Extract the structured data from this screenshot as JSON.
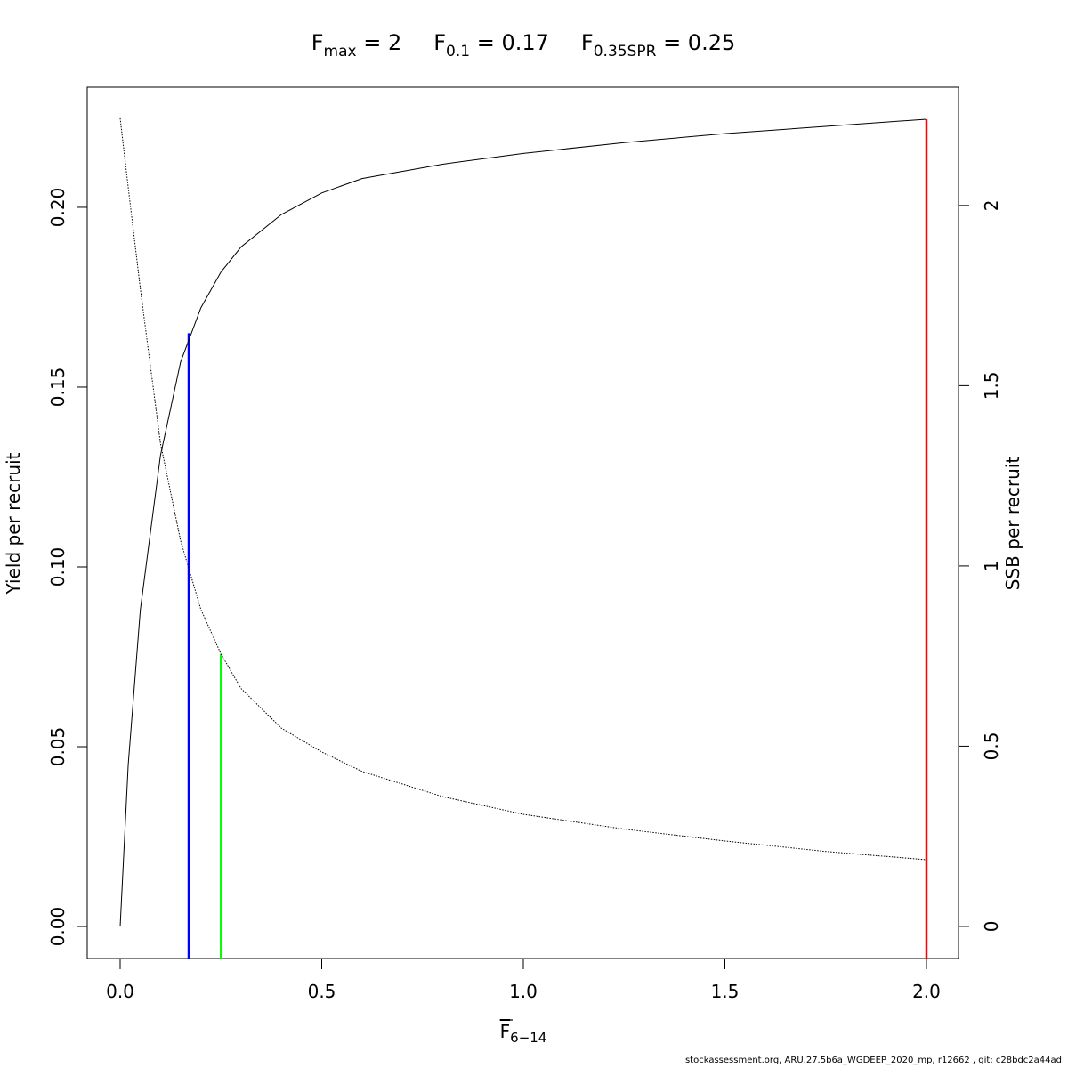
{
  "chart_data": {
    "type": "line",
    "title_parts": [
      {
        "base": "F",
        "sub": "max",
        "text": " = 2"
      },
      {
        "base": "F",
        "sub": "0.1",
        "text": " = 0.17"
      },
      {
        "base": "F",
        "sub": "0.35SPR",
        "text": " = 0.25"
      }
    ],
    "xlabel": {
      "base": "F",
      "sub": "6−14"
    },
    "ylabel": "Yield per recruit",
    "y2label": "SSB per recruit",
    "footer": "stockassessment.org, ARU.27.5b6a_WGDEEP_2020_mp, r12662 , git: c28bdc2a44ad",
    "x": [
      0,
      0.02,
      0.05,
      0.1,
      0.15,
      0.2,
      0.25,
      0.3,
      0.4,
      0.5,
      0.6,
      0.8,
      1.0,
      1.25,
      1.5,
      1.75,
      2.0
    ],
    "series": [
      {
        "name": "Yield per recruit",
        "color": "#000000",
        "linestyle": "solid",
        "axis": "y",
        "values": [
          0,
          0.045,
          0.088,
          0.131,
          0.157,
          0.172,
          0.182,
          0.189,
          0.198,
          0.204,
          0.208,
          0.212,
          0.215,
          0.218,
          0.2205,
          0.2225,
          0.2245
        ]
      },
      {
        "name": "SSB per recruit",
        "color": "#000000",
        "linestyle": "dotted",
        "axis": "y2",
        "values": [
          2.242,
          2.05,
          1.77,
          1.34,
          1.07,
          0.88,
          0.756,
          0.66,
          0.55,
          0.484,
          0.43,
          0.36,
          0.311,
          0.27,
          0.237,
          0.208,
          0.185
        ]
      }
    ],
    "ref_lines": [
      {
        "x": 0.17,
        "top": 0.165,
        "axis": "y",
        "color": "#0000ff"
      },
      {
        "x": 0.25,
        "top": 0.756,
        "axis": "y2",
        "color": "#00ff00"
      },
      {
        "x": 2.0,
        "top": 0.2245,
        "axis": "y",
        "color": "#ff0000"
      }
    ],
    "xlim": [
      -0.0817,
      2.0795
    ],
    "xticks": [
      {
        "value": 0,
        "label": "0.0"
      },
      0.5,
      {
        "value": 1,
        "label": "1.0"
      },
      1.5,
      {
        "value": 2,
        "label": "2.0"
      }
    ],
    "ylim": [
      -0.0089,
      0.2334
    ],
    "yticks": [
      {
        "value": 0,
        "label": "0.00"
      },
      0.05,
      {
        "value": 0.1,
        "label": "0.10"
      },
      0.15,
      {
        "value": 0.2,
        "label": "0.20"
      }
    ],
    "y2lim": [
      -0.089,
      2.328
    ],
    "y2ticks": [
      0,
      0.5,
      1,
      1.5,
      2
    ],
    "grid": false
  }
}
